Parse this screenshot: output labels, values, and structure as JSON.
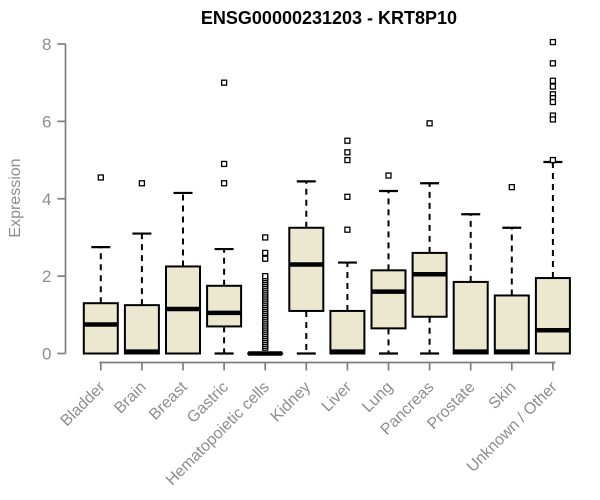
{
  "chart_data": {
    "type": "boxplot",
    "title": "ENSG00000231203 - KRT8P10",
    "ylabel": "Expression",
    "xlabel": "",
    "ylim": [
      0,
      8
    ],
    "yticks": [
      0,
      2,
      4,
      6,
      8
    ],
    "grid": false,
    "legend": false,
    "categories": [
      "Bladder",
      "Brain",
      "Breast",
      "Gastric",
      "Hematopoietic cells",
      "Kidney",
      "Liver",
      "Lung",
      "Pancreas",
      "Prostate",
      "Skin",
      "Unknown / Other"
    ],
    "boxes": [
      {
        "category": "Bladder",
        "min": 0,
        "q1": 0,
        "median": 0.75,
        "q3": 1.3,
        "max": 2.75,
        "outliers": [
          4.55
        ]
      },
      {
        "category": "Brain",
        "min": 0,
        "q1": 0,
        "median": 0.05,
        "q3": 1.25,
        "max": 3.1,
        "outliers": [
          4.4
        ]
      },
      {
        "category": "Breast",
        "min": 0,
        "q1": 0,
        "median": 1.15,
        "q3": 2.25,
        "max": 4.15,
        "outliers": []
      },
      {
        "category": "Gastric",
        "min": 0,
        "q1": 0.7,
        "median": 1.05,
        "q3": 1.75,
        "max": 2.7,
        "outliers": [
          7.0,
          4.9,
          4.4
        ]
      },
      {
        "category": "Hematopoietic cells",
        "min": 0,
        "q1": 0,
        "median": 0,
        "q3": 0,
        "max": 0,
        "outliers": [
          3.0,
          2.6,
          2.45
        ],
        "outlier_band": {
          "from": 0.15,
          "to": 2.0,
          "step": 0.05
        }
      },
      {
        "category": "Kidney",
        "min": 0,
        "q1": 1.1,
        "median": 2.3,
        "q3": 3.25,
        "max": 4.45,
        "outliers": []
      },
      {
        "category": "Liver",
        "min": 0,
        "q1": 0,
        "median": 0.05,
        "q3": 1.1,
        "max": 2.35,
        "outliers": [
          5.5,
          5.2,
          5.0,
          4.05,
          3.2
        ]
      },
      {
        "category": "Lung",
        "min": 0,
        "q1": 0.65,
        "median": 1.6,
        "q3": 2.15,
        "max": 4.2,
        "outliers": [
          4.6
        ]
      },
      {
        "category": "Pancreas",
        "min": 0,
        "q1": 0.95,
        "median": 2.05,
        "q3": 2.6,
        "max": 4.4,
        "outliers": [
          5.95
        ]
      },
      {
        "category": "Prostate",
        "min": 0,
        "q1": 0,
        "median": 0.05,
        "q3": 1.85,
        "max": 3.6,
        "outliers": []
      },
      {
        "category": "Skin",
        "min": 0,
        "q1": 0,
        "median": 0.05,
        "q3": 1.5,
        "max": 3.25,
        "outliers": [
          4.3
        ]
      },
      {
        "category": "Unknown / Other",
        "min": 0,
        "q1": 0,
        "median": 0.6,
        "q3": 1.95,
        "max": 4.95,
        "outliers": [
          8.05,
          7.5,
          7.05,
          6.9,
          6.7,
          6.6,
          6.5,
          6.15,
          6.05,
          5.0
        ]
      }
    ],
    "colors": {
      "box_fill": "#ece8d0",
      "box_border": "#000000",
      "median": "#000000",
      "whisker": "#000000",
      "outlier_stroke": "#000000",
      "outlier_fill": "#ffffff",
      "axis": "#7e7e7e",
      "axis_text": "#8d8d8d",
      "title": "#000000",
      "background": "#ffffff"
    }
  }
}
